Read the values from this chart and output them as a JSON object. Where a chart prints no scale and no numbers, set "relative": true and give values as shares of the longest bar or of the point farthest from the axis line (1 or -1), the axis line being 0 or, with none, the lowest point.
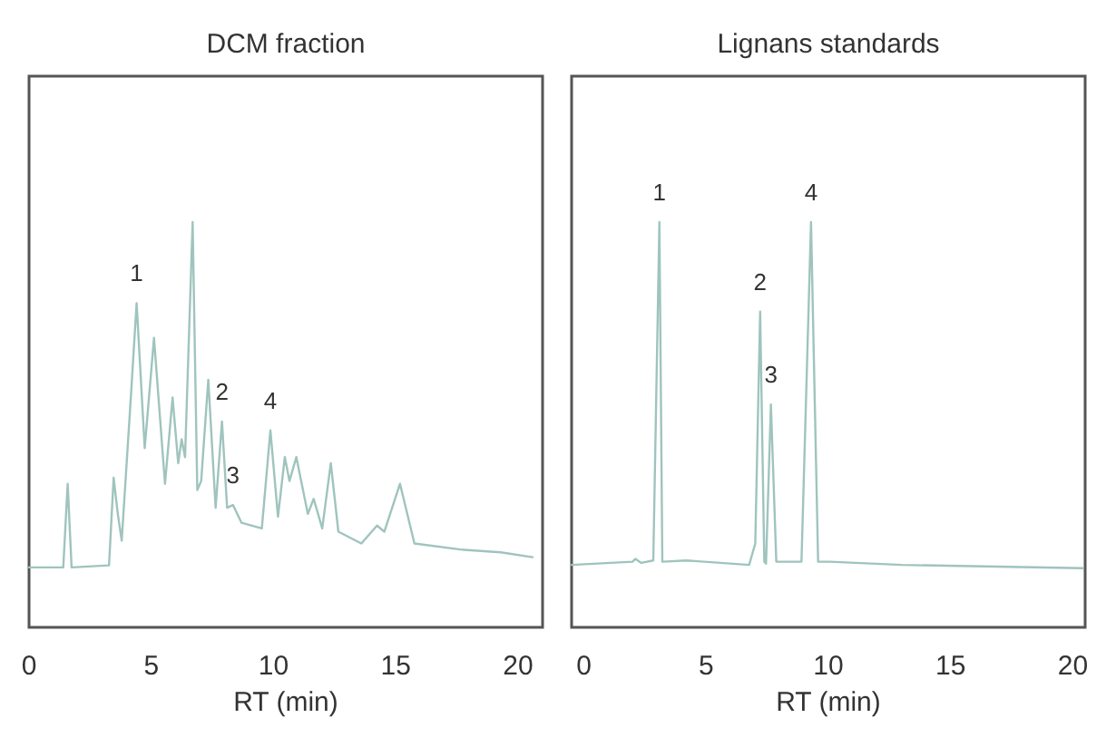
{
  "chart_data": [
    {
      "type": "line",
      "title": "DCM fraction",
      "xlabel": "RT (min)",
      "relative": true,
      "xlim": [
        0,
        21
      ],
      "xticks": [
        0,
        5,
        10,
        15,
        20
      ],
      "series": [
        {
          "color": "#9fc4bd",
          "x": [
            0,
            1.4,
            1.58,
            1.74,
            3.27,
            3.46,
            3.63,
            3.79,
            4.17,
            4.4,
            4.73,
            5.11,
            5.56,
            5.87,
            6.1,
            6.24,
            6.38,
            6.69,
            6.88,
            7.04,
            7.33,
            7.63,
            7.89,
            8.1,
            8.34,
            8.69,
            9.52,
            9.87,
            10.18,
            10.46,
            10.65,
            10.93,
            11.4,
            11.64,
            11.99,
            12.34,
            12.65,
            13.59,
            14.23,
            14.53,
            15.17,
            15.76,
            17.64,
            19.29,
            20.59
          ],
          "values": [
            0.148,
            0.148,
            0.354,
            0.148,
            0.153,
            0.369,
            0.28,
            0.214,
            0.574,
            0.8,
            0.442,
            0.714,
            0.354,
            0.567,
            0.405,
            0.464,
            0.42,
            1.0,
            0.339,
            0.361,
            0.611,
            0.295,
            0.508,
            0.295,
            0.302,
            0.258,
            0.244,
            0.486,
            0.273,
            0.42,
            0.361,
            0.42,
            0.28,
            0.317,
            0.244,
            0.405,
            0.236,
            0.207,
            0.251,
            0.236,
            0.354,
            0.207,
            0.192,
            0.185,
            0.173
          ]
        }
      ],
      "annotations": [
        {
          "text": "1",
          "x": 4.4,
          "y": 0.8
        },
        {
          "text": "2",
          "x": 7.89,
          "y": 0.508
        },
        {
          "text": "3",
          "x": 8.34,
          "y": 0.302
        },
        {
          "text": "4",
          "x": 9.87,
          "y": 0.486
        }
      ]
    },
    {
      "type": "line",
      "title": "Lignans standards",
      "xlabel": "RT (min)",
      "relative": true,
      "xlim": [
        -0.5,
        20.5
      ],
      "xticks": [
        0,
        5,
        10,
        15,
        20
      ],
      "series": [
        {
          "color": "#9fc4bd",
          "x": [
            -0.5,
            1.99,
            2.11,
            2.35,
            2.84,
            3.09,
            3.21,
            4.19,
            6.76,
            7.01,
            7.21,
            7.38,
            7.45,
            7.65,
            7.87,
            8.9,
            9.29,
            9.58,
            10.07,
            13.01,
            20.4
          ],
          "values": [
            0.154,
            0.162,
            0.169,
            0.159,
            0.165,
            1.0,
            0.162,
            0.165,
            0.154,
            0.207,
            0.779,
            0.162,
            0.157,
            0.55,
            0.162,
            0.162,
            1.0,
            0.162,
            0.162,
            0.154,
            0.146
          ]
        }
      ],
      "annotations": [
        {
          "text": "1",
          "x": 3.09,
          "y": 1.0
        },
        {
          "text": "2",
          "x": 7.21,
          "y": 0.779
        },
        {
          "text": "3",
          "x": 7.65,
          "y": 0.55
        },
        {
          "text": "4",
          "x": 9.29,
          "y": 1.0
        }
      ]
    }
  ]
}
